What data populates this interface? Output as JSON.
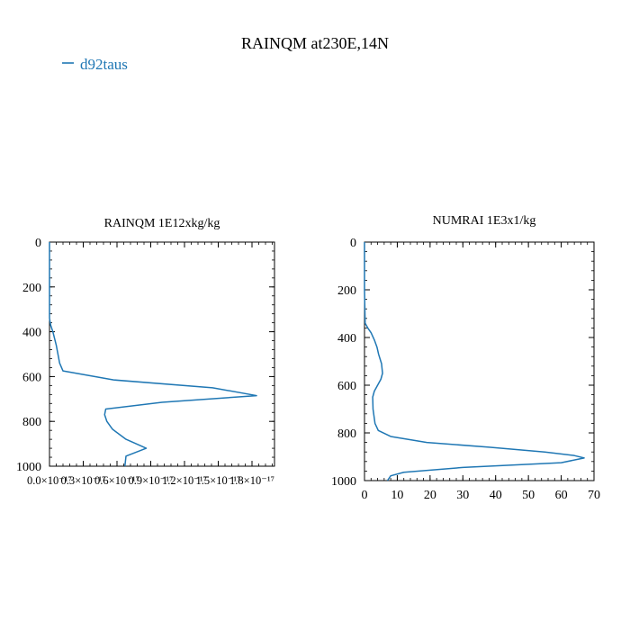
{
  "figure": {
    "title": "RAINQM at230E,14N",
    "legend": {
      "label": "d92taus",
      "color": "#1f77b4",
      "placement": "top-left"
    }
  },
  "chart_data": [
    {
      "type": "line",
      "title": "RAINQM  1E12xkg/kg",
      "xlabel": "",
      "ylabel": "",
      "xlim": [
        0,
        2e-17
      ],
      "ylim": [
        1000,
        0
      ],
      "y_inverted": true,
      "xticks": [
        0,
        3e-18,
        6e-18,
        9e-18,
        1.2e-17,
        1.5e-17,
        1.8e-17
      ],
      "xtick_labels": [
        "0.0×10⁻¹⁷",
        "0.3×10⁻¹⁷",
        "0.6×10⁻¹⁷",
        "0.9×10⁻¹⁷",
        "1.2×10⁻¹⁷",
        "1.5×10⁻¹⁷",
        "1.8×10⁻¹⁷"
      ],
      "yticks": [
        0,
        200,
        400,
        600,
        800,
        1000
      ],
      "ytick_labels": [
        "0",
        "200",
        "400",
        "600",
        "800",
        "1000"
      ],
      "series": [
        {
          "name": "d92taus",
          "color": "#1f77b4",
          "x": [
            0,
            0,
            0,
            1e-19,
            3e-19,
            6e-19,
            9e-19,
            1.2e-18,
            5.7e-18,
            1.45e-17,
            1.84e-17,
            1e-17,
            5e-18,
            4.9e-18,
            5.1e-18,
            5.6e-18,
            6.8e-18,
            8.6e-18,
            6.8e-18,
            6.7e-18
          ],
          "y": [
            0,
            200,
            340,
            370,
            400,
            460,
            540,
            575,
            615,
            650,
            685,
            715,
            745,
            770,
            800,
            835,
            880,
            920,
            955,
            1000
          ]
        }
      ]
    },
    {
      "type": "line",
      "title": "NUMRAI  1E3x1/kg",
      "xlabel": "",
      "ylabel": "",
      "xlim": [
        0,
        70
      ],
      "ylim": [
        1000,
        0
      ],
      "y_inverted": true,
      "xticks": [
        0,
        10,
        20,
        30,
        40,
        50,
        60,
        70
      ],
      "xtick_labels": [
        "0",
        "10",
        "20",
        "30",
        "40",
        "50",
        "60",
        "70"
      ],
      "yticks": [
        0,
        200,
        400,
        600,
        800,
        1000
      ],
      "ytick_labels": [
        "0",
        "200",
        "400",
        "600",
        "800",
        "1000"
      ],
      "series": [
        {
          "name": "d92taus",
          "color": "#1f77b4",
          "x": [
            0,
            0,
            0.2,
            1,
            2,
            3,
            3.8,
            4.3,
            5.2,
            5.5,
            5,
            4,
            3,
            2.5,
            2.6,
            3.2,
            4.2,
            8,
            19,
            38,
            55,
            64,
            67,
            60,
            30,
            12,
            8,
            7
          ],
          "y": [
            0,
            200,
            340,
            360,
            380,
            410,
            440,
            470,
            510,
            550,
            575,
            600,
            625,
            650,
            700,
            760,
            790,
            815,
            840,
            860,
            880,
            895,
            905,
            925,
            945,
            965,
            980,
            1000
          ]
        }
      ]
    }
  ]
}
